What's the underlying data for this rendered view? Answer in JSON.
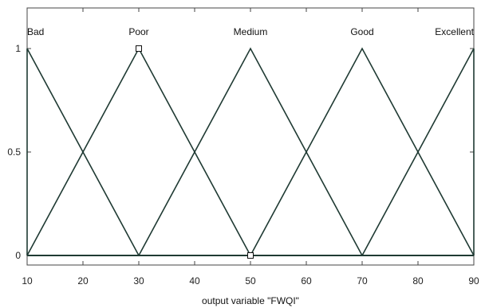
{
  "chart_data": {
    "type": "line",
    "xlabel": "output variable \"FWQI\"",
    "ylabel": "",
    "xlim": [
      10,
      90
    ],
    "ylim": [
      0,
      1
    ],
    "x_ticks": [
      10,
      20,
      30,
      40,
      50,
      60,
      70,
      80,
      90
    ],
    "y_ticks": [
      0,
      0.5,
      1
    ],
    "grid": false,
    "line_color": "#1f3a33",
    "series": [
      {
        "name": "Bad",
        "x": [
          10,
          10,
          30
        ],
        "y": [
          0,
          1,
          0
        ]
      },
      {
        "name": "Poor",
        "x": [
          10,
          30,
          50
        ],
        "y": [
          0,
          1,
          0
        ]
      },
      {
        "name": "Medium",
        "x": [
          30,
          50,
          70
        ],
        "y": [
          0,
          1,
          0
        ]
      },
      {
        "name": "Good",
        "x": [
          50,
          70,
          90
        ],
        "y": [
          0,
          1,
          0
        ]
      },
      {
        "name": "Excellent",
        "x": [
          70,
          90,
          90
        ],
        "y": [
          0,
          1,
          0
        ]
      }
    ],
    "markers": [
      {
        "x": 30,
        "y": 1
      },
      {
        "x": 50,
        "y": 0
      }
    ]
  }
}
